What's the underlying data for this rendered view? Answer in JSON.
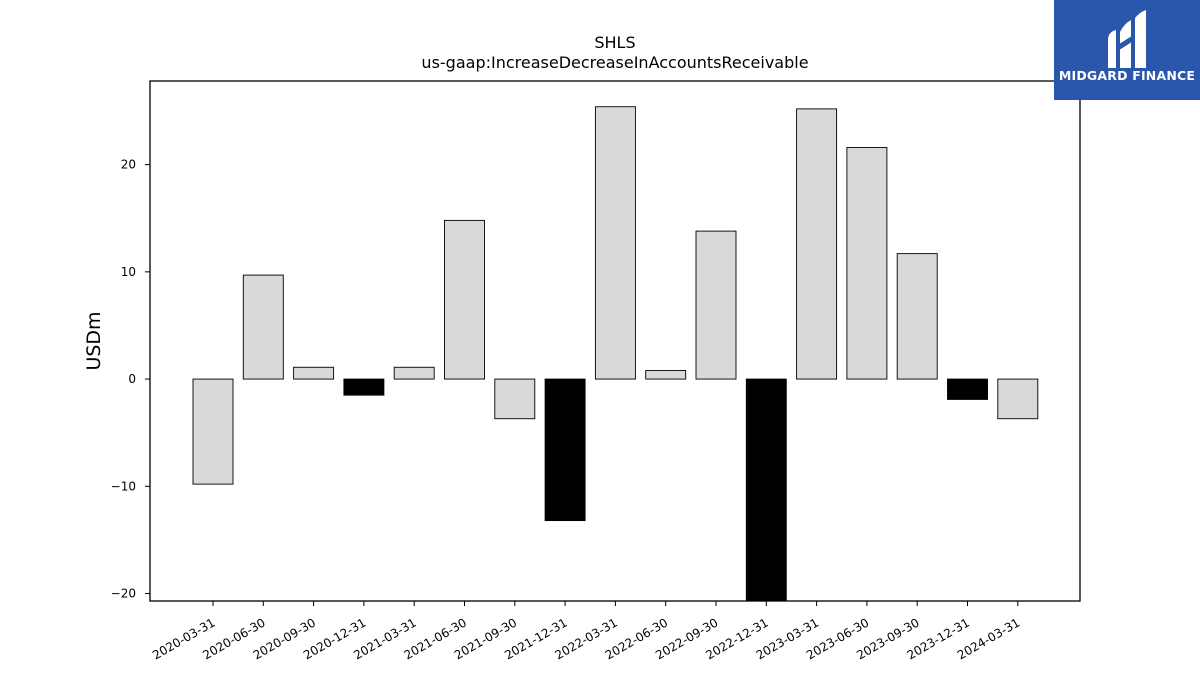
{
  "chart_data": {
    "type": "bar",
    "title": "SHLS",
    "subtitle": "us-gaap:IncreaseDecreaseInAccountsReceivable",
    "ylabel": "USDm",
    "xlabel": "",
    "ylim": [
      -20.7,
      27.8
    ],
    "yticks": [
      -20,
      -10,
      0,
      10,
      20
    ],
    "ytick_labels": [
      "−20",
      "−10",
      "0",
      "10",
      "20"
    ],
    "categories": [
      "2020-03-31",
      "2020-06-30",
      "2020-09-30",
      "2020-12-31",
      "2021-03-31",
      "2021-06-30",
      "2021-09-30",
      "2021-12-31",
      "2022-03-31",
      "2022-06-30",
      "2022-09-30",
      "2022-12-31",
      "2023-03-31",
      "2023-06-30",
      "2023-09-30",
      "2023-12-31",
      "2024-03-31"
    ],
    "values": [
      -9.8,
      9.7,
      1.1,
      -1.5,
      1.1,
      14.8,
      -3.7,
      -13.2,
      25.4,
      0.8,
      13.8,
      -21.5,
      25.2,
      21.6,
      11.7,
      -1.9,
      -3.7
    ],
    "colors": [
      "#d9d9d9",
      "#d9d9d9",
      "#d9d9d9",
      "#000000",
      "#d9d9d9",
      "#d9d9d9",
      "#d9d9d9",
      "#000000",
      "#d9d9d9",
      "#d9d9d9",
      "#d9d9d9",
      "#000000",
      "#d9d9d9",
      "#d9d9d9",
      "#d9d9d9",
      "#000000",
      "#d9d9d9"
    ],
    "grid": false,
    "legend": "none"
  },
  "logo": {
    "text": "MIDGARD FINANCE",
    "background": "#2a56ab",
    "icon": "midgard-m-logo-icon"
  }
}
